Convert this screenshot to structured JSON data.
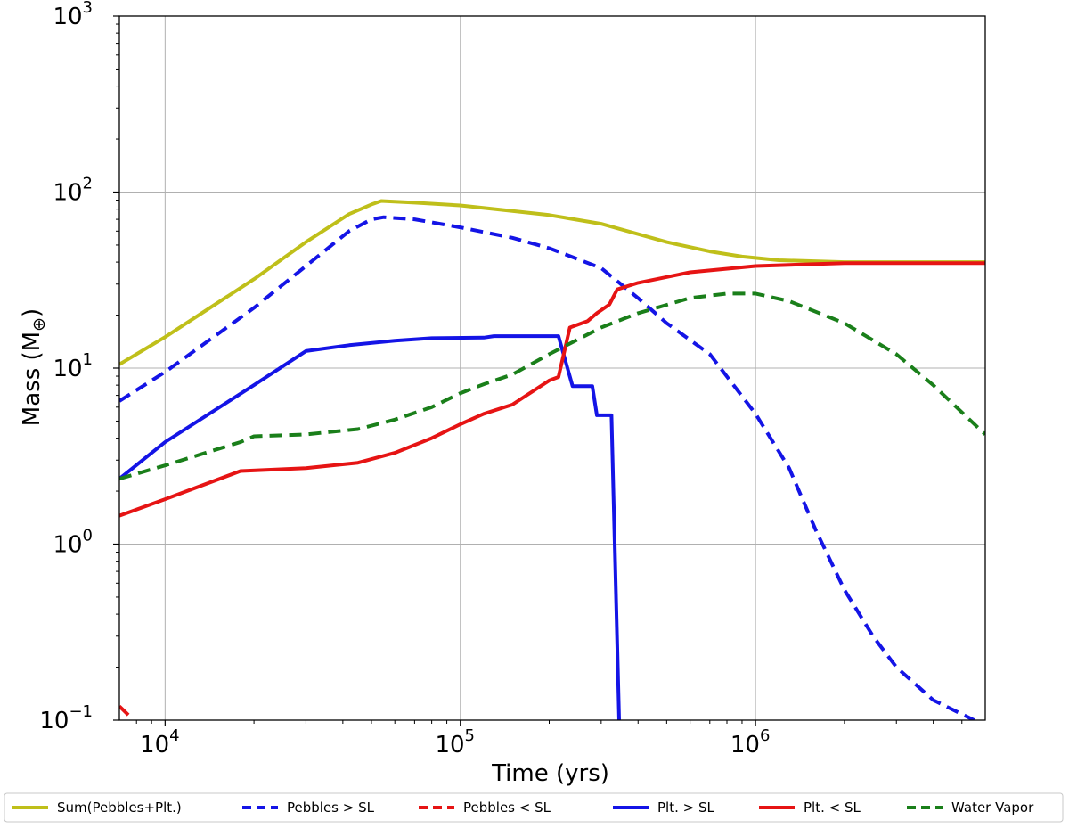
{
  "chart_data": {
    "type": "line",
    "title": "",
    "xlabel": "Time  (yrs)",
    "ylabel_main": "Mass (M",
    "ylabel_sub": "⊕",
    "ylabel_close": ")",
    "xscale": "log",
    "yscale": "log",
    "xlim": [
      7000,
      6000000
    ],
    "ylim": [
      0.1,
      1000
    ],
    "grid": true,
    "legend_position": "bottom",
    "x_ticks": [
      {
        "value": 10000,
        "base": "10",
        "exp": "4"
      },
      {
        "value": 100000,
        "base": "10",
        "exp": "5"
      },
      {
        "value": 1000000,
        "base": "10",
        "exp": "6"
      }
    ],
    "y_ticks": [
      {
        "value": 0.1,
        "base": "10",
        "exp": "−1"
      },
      {
        "value": 1,
        "base": "10",
        "exp": "0"
      },
      {
        "value": 10,
        "base": "10",
        "exp": "1"
      },
      {
        "value": 100,
        "base": "10",
        "exp": "2"
      },
      {
        "value": 1000,
        "base": "10",
        "exp": "3"
      }
    ],
    "series": [
      {
        "name": "Sum(Pebbles+Plt.)",
        "color": "#bfbf1a",
        "dash": "solid",
        "points": [
          [
            7000,
            10.5
          ],
          [
            10000,
            15
          ],
          [
            20000,
            32
          ],
          [
            30000,
            52
          ],
          [
            42000,
            75
          ],
          [
            50000,
            85
          ],
          [
            54000,
            89
          ],
          [
            70000,
            87
          ],
          [
            100000,
            84
          ],
          [
            150000,
            78
          ],
          [
            200000,
            74
          ],
          [
            300000,
            66
          ],
          [
            500000,
            52
          ],
          [
            700000,
            46
          ],
          [
            900000,
            43
          ],
          [
            1200000,
            41
          ],
          [
            2000000,
            40
          ],
          [
            6000000,
            40
          ]
        ]
      },
      {
        "name": "Pebbles > SL",
        "color": "#1414e6",
        "dash": "dashed",
        "points": [
          [
            7000,
            6.5
          ],
          [
            10000,
            9.5
          ],
          [
            20000,
            22
          ],
          [
            30000,
            38
          ],
          [
            42000,
            60
          ],
          [
            50000,
            70
          ],
          [
            55000,
            72
          ],
          [
            70000,
            70
          ],
          [
            100000,
            63
          ],
          [
            150000,
            55
          ],
          [
            200000,
            48
          ],
          [
            300000,
            37
          ],
          [
            400000,
            25
          ],
          [
            500000,
            18
          ],
          [
            700000,
            12
          ],
          [
            1000000,
            5.5
          ],
          [
            1300000,
            2.7
          ],
          [
            1600000,
            1.2
          ],
          [
            2000000,
            0.55
          ],
          [
            2500000,
            0.3
          ],
          [
            3000000,
            0.2
          ],
          [
            4000000,
            0.13
          ],
          [
            5500000,
            0.1
          ]
        ]
      },
      {
        "name": "Pebbles < SL",
        "color": "#e61414",
        "dash": "dashed",
        "points": [
          [
            7000,
            0.12
          ],
          [
            7600,
            0.105
          ]
        ]
      },
      {
        "name": "Plt. > SL",
        "color": "#1414e6",
        "dash": "solid",
        "points": [
          [
            7000,
            2.35
          ],
          [
            10000,
            3.8
          ],
          [
            20000,
            8
          ],
          [
            30000,
            12.5
          ],
          [
            42000,
            13.5
          ],
          [
            60000,
            14.3
          ],
          [
            80000,
            14.8
          ],
          [
            120000,
            14.9
          ],
          [
            130000,
            15.2
          ],
          [
            200000,
            15.2
          ],
          [
            215000,
            15.2
          ],
          [
            240000,
            7.9
          ],
          [
            280000,
            7.9
          ],
          [
            290000,
            5.4
          ],
          [
            325000,
            5.4
          ],
          [
            345000,
            0.1
          ]
        ]
      },
      {
        "name": "Plt. < SL",
        "color": "#e61414",
        "dash": "solid",
        "points": [
          [
            7000,
            1.45
          ],
          [
            10000,
            1.8
          ],
          [
            18000,
            2.6
          ],
          [
            30000,
            2.7
          ],
          [
            45000,
            2.9
          ],
          [
            60000,
            3.3
          ],
          [
            80000,
            4
          ],
          [
            100000,
            4.8
          ],
          [
            120000,
            5.5
          ],
          [
            150000,
            6.2
          ],
          [
            200000,
            8.5
          ],
          [
            215000,
            8.9
          ],
          [
            235000,
            17
          ],
          [
            270000,
            18.5
          ],
          [
            290000,
            20.5
          ],
          [
            320000,
            23
          ],
          [
            340000,
            28
          ],
          [
            400000,
            30.5
          ],
          [
            600000,
            35
          ],
          [
            1000000,
            38
          ],
          [
            2000000,
            39.5
          ],
          [
            6000000,
            39.5
          ]
        ]
      },
      {
        "name": "Water Vapor",
        "color": "#1a7f1a",
        "dash": "dashed",
        "points": [
          [
            7000,
            2.35
          ],
          [
            10000,
            2.8
          ],
          [
            18000,
            3.8
          ],
          [
            20000,
            4.1
          ],
          [
            30000,
            4.2
          ],
          [
            45000,
            4.5
          ],
          [
            60000,
            5.1
          ],
          [
            80000,
            6
          ],
          [
            100000,
            7.2
          ],
          [
            120000,
            8.1
          ],
          [
            150000,
            9.2
          ],
          [
            200000,
            12
          ],
          [
            300000,
            17
          ],
          [
            400000,
            20.5
          ],
          [
            600000,
            25
          ],
          [
            800000,
            26.5
          ],
          [
            1000000,
            26.5
          ],
          [
            1300000,
            24
          ],
          [
            2000000,
            18
          ],
          [
            3000000,
            12
          ],
          [
            4000000,
            8
          ],
          [
            6000000,
            4.2
          ]
        ]
      }
    ]
  }
}
